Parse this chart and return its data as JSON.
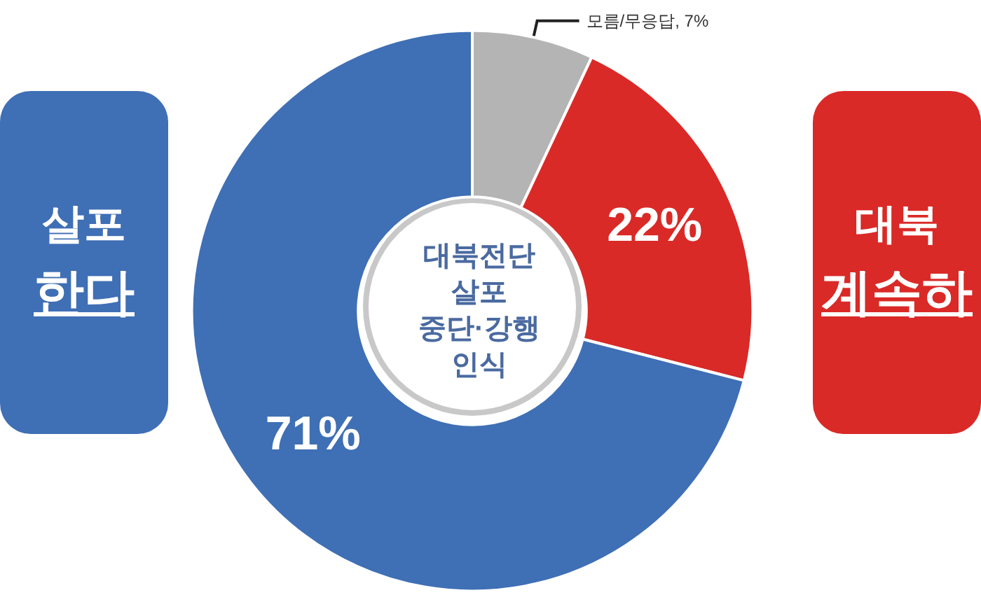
{
  "chart_data": {
    "type": "donut",
    "title": "대북전단\n살포\n중단·강행\n인식",
    "categories": [
      "모름/무응답",
      null,
      null
    ],
    "values": [
      7,
      22,
      71
    ],
    "value_labels": [
      "7%",
      "22%",
      "71%"
    ],
    "colors": [
      "#b4b4b4",
      "#d92a27",
      "#3f6fb5"
    ],
    "legend": false,
    "annotations": [
      "살포\n한다",
      "대북\n계속하"
    ]
  }
}
